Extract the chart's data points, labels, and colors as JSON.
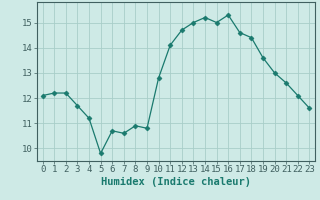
{
  "x": [
    0,
    1,
    2,
    3,
    4,
    5,
    6,
    7,
    8,
    9,
    10,
    11,
    12,
    13,
    14,
    15,
    16,
    17,
    18,
    19,
    20,
    21,
    22,
    23
  ],
  "y": [
    12.1,
    12.2,
    12.2,
    11.7,
    11.2,
    9.8,
    10.7,
    10.6,
    10.9,
    10.8,
    12.8,
    14.1,
    14.7,
    15.0,
    15.2,
    15.0,
    15.3,
    14.6,
    14.4,
    13.6,
    13.0,
    12.6,
    12.1,
    11.6
  ],
  "line_color": "#1a7a6e",
  "marker": "D",
  "marker_size": 2.5,
  "bg_color": "#ceeae6",
  "grid_color": "#a8cec9",
  "axis_color": "#406060",
  "xlabel": "Humidex (Indice chaleur)",
  "xlabel_fontsize": 7.5,
  "tick_fontsize": 6.5,
  "ylim": [
    9.5,
    15.8
  ],
  "xlim": [
    -0.5,
    23.5
  ],
  "yticks": [
    10,
    11,
    12,
    13,
    14,
    15
  ],
  "xticks": [
    0,
    1,
    2,
    3,
    4,
    5,
    6,
    7,
    8,
    9,
    10,
    11,
    12,
    13,
    14,
    15,
    16,
    17,
    18,
    19,
    20,
    21,
    22,
    23
  ]
}
